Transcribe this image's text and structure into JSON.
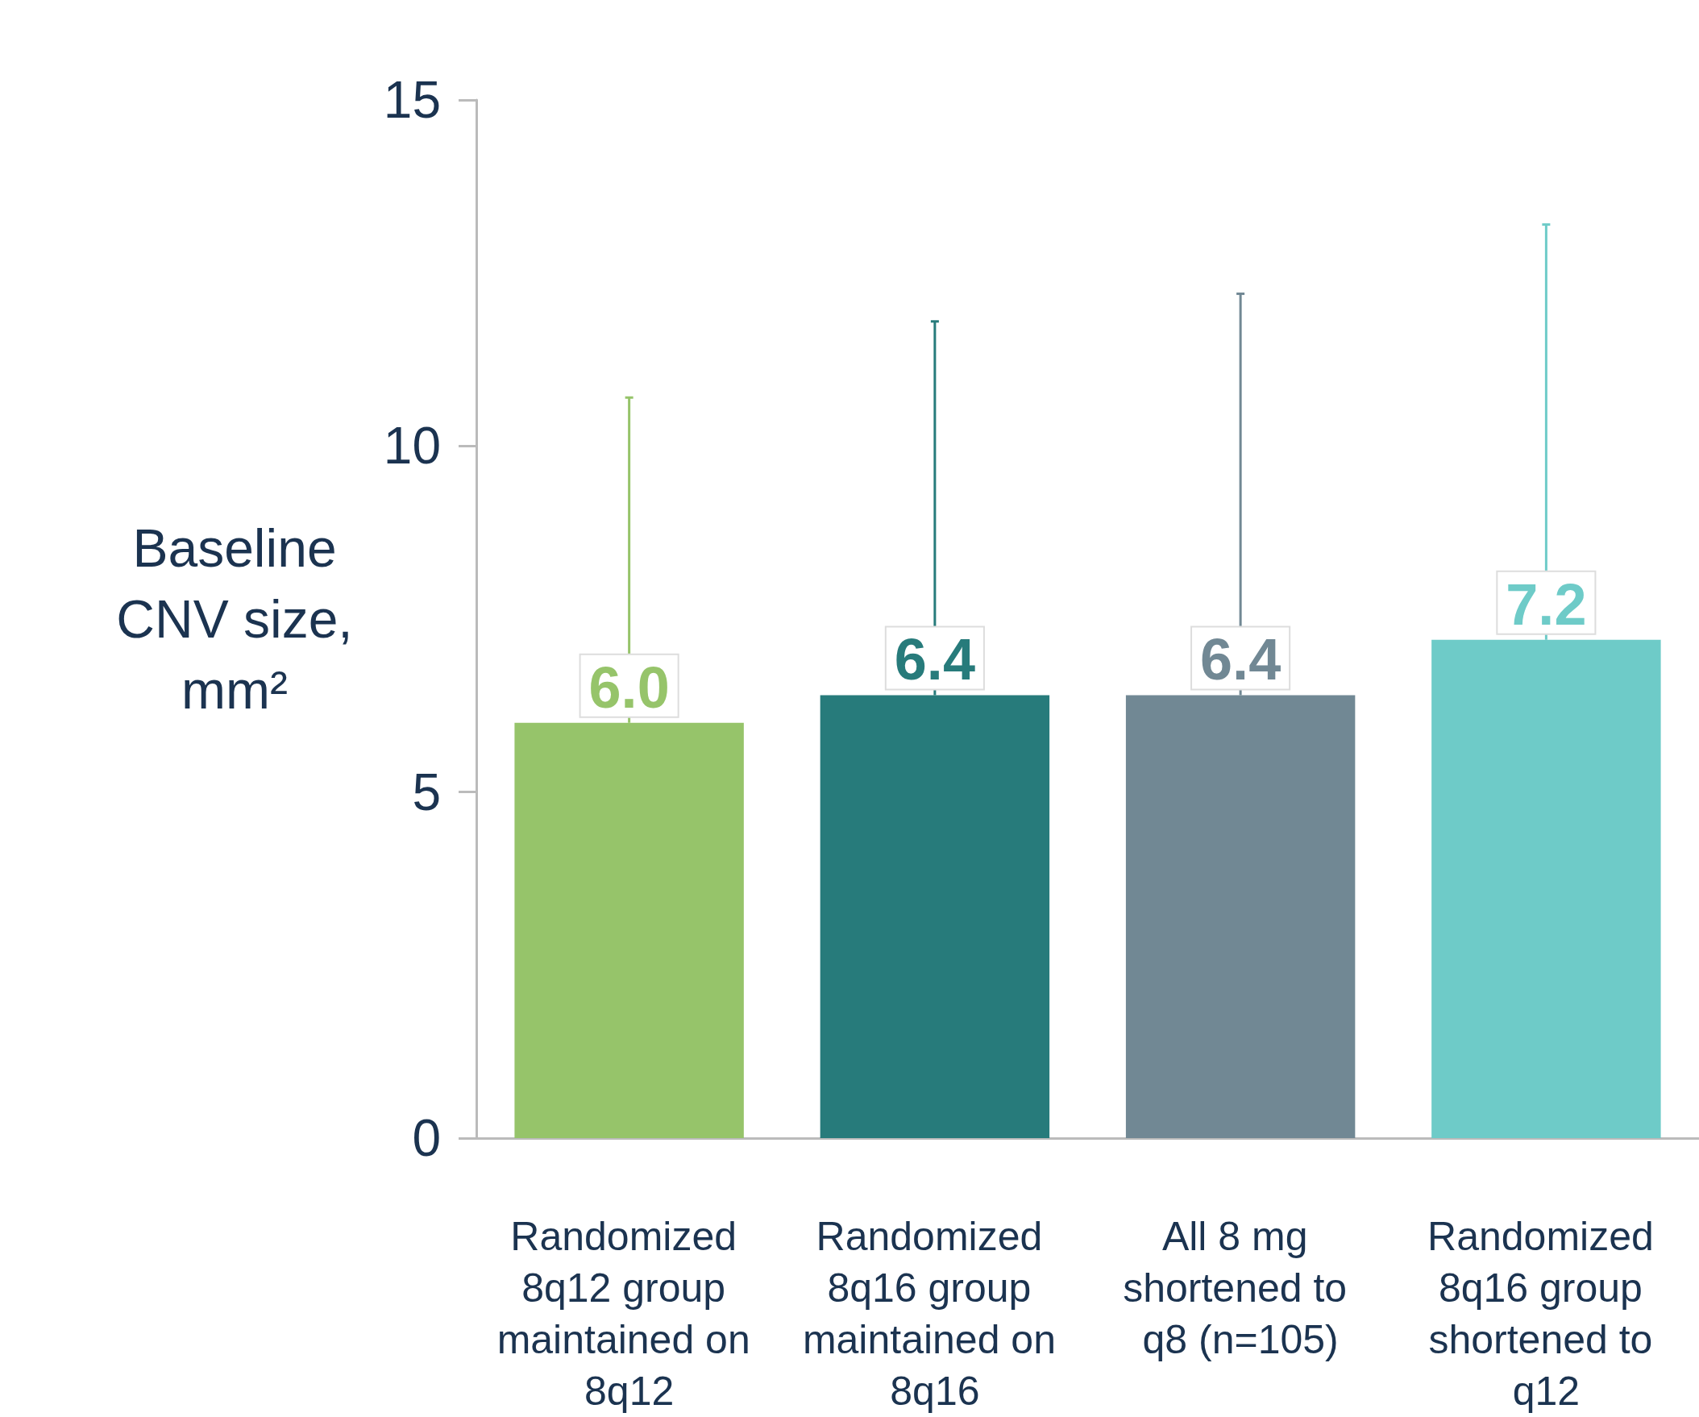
{
  "chart_data": {
    "type": "bar",
    "ylabel": "Baseline CNV size, mm²",
    "categories": [
      "Randomized 8q12 group maintained on 8q12",
      "Randomized 8q16 group maintained on 8q16",
      "All 8 mg shortened to q8 (n=105)",
      "Randomized 8q16 group shortened to q12"
    ],
    "values": [
      6.0,
      6.4,
      6.4,
      7.2
    ],
    "colors": [
      "#96c46a",
      "#277b7b",
      "#718894",
      "#6ecbc8"
    ],
    "errors": [
      [
        6.0,
        10.7
      ],
      [
        6.4,
        11.8
      ],
      [
        6.4,
        12.2
      ],
      [
        7.2,
        13.2
      ]
    ],
    "value_labels": [
      "6.0",
      "6.4",
      "6.4",
      "7.2"
    ],
    "ylim": [
      0,
      15
    ],
    "yticks": [
      0,
      5,
      10,
      15
    ],
    "grid": false
  }
}
